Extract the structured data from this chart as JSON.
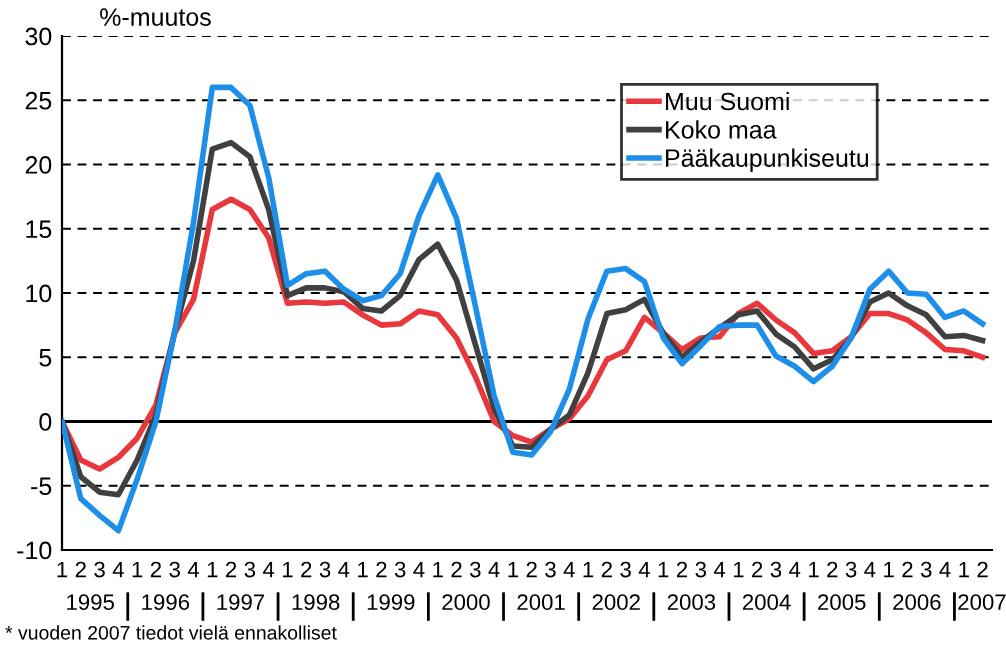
{
  "chart_data": {
    "type": "line",
    "ylabel": "%-muutos",
    "categories": [
      "1",
      "2",
      "3",
      "4",
      "1",
      "2",
      "3",
      "4",
      "1",
      "2",
      "3",
      "4",
      "1",
      "2",
      "3",
      "4",
      "1",
      "2",
      "3",
      "4",
      "1",
      "2",
      "3",
      "4",
      "1",
      "2",
      "3",
      "4",
      "1",
      "2",
      "3",
      "4",
      "1",
      "2",
      "3",
      "4",
      "1",
      "2",
      "3",
      "4",
      "1",
      "2",
      "3",
      "4",
      "1",
      "2",
      "3",
      "4",
      "1",
      "2"
    ],
    "series": [
      {
        "name": "Muu Suomi",
        "color": "#e8383d",
        "values": [
          0,
          -3.0,
          -3.7,
          -2.8,
          -1.3,
          1.3,
          6.9,
          9.5,
          16.5,
          17.3,
          16.5,
          14.3,
          9.2,
          9.3,
          9.2,
          9.3,
          8.3,
          7.5,
          7.6,
          8.6,
          8.3,
          6.5,
          3.5,
          0,
          -1.1,
          -1.6,
          -0.6,
          0.2,
          2.0,
          4.8,
          5.5,
          8.1,
          6.9,
          5.6,
          6.5,
          6.6,
          8.4,
          9.2,
          7.9,
          6.9,
          5.3,
          5.5,
          6.6,
          8.4,
          8.4,
          7.9,
          6.9,
          5.6,
          5.5,
          5.0
        ]
      },
      {
        "name": "Koko maa",
        "color": "#404040",
        "values": [
          0,
          -4.3,
          -5.5,
          -5.7,
          -3.0,
          0.5,
          7.0,
          12.5,
          21.2,
          21.7,
          20.6,
          16.5,
          9.8,
          10.4,
          10.4,
          10.1,
          8.8,
          8.6,
          9.8,
          12.6,
          13.8,
          11.0,
          6.0,
          1.0,
          -1.9,
          -2.0,
          -0.6,
          0.5,
          3.8,
          8.4,
          8.7,
          9.5,
          6.9,
          5.0,
          6.2,
          7.3,
          8.3,
          8.6,
          6.8,
          5.8,
          4.1,
          4.8,
          6.5,
          9.3,
          10.0,
          9.0,
          8.3,
          6.6,
          6.7,
          6.3
        ]
      },
      {
        "name": "Pääkaupunkiseutu",
        "color": "#1e8fe8",
        "values": [
          0,
          -6.0,
          -7.3,
          -8.5,
          -4.5,
          0,
          7.0,
          15.5,
          26.0,
          26.0,
          24.6,
          19.0,
          10.6,
          11.5,
          11.7,
          10.3,
          9.4,
          9.8,
          11.5,
          16.0,
          19.2,
          15.8,
          9.0,
          2.0,
          -2.4,
          -2.6,
          -0.8,
          2.5,
          8.0,
          11.7,
          11.9,
          10.9,
          6.5,
          4.5,
          5.9,
          7.4,
          7.5,
          7.5,
          5.1,
          4.3,
          3.1,
          4.3,
          6.5,
          10.3,
          11.7,
          10.0,
          9.9,
          8.1,
          8.6,
          7.6
        ]
      }
    ],
    "ylim": [
      -10,
      30
    ],
    "yticks": [
      -10,
      -5,
      0,
      5,
      10,
      15,
      20,
      25,
      30
    ],
    "grid": "y",
    "legend": "top right",
    "line_style": "solid",
    "marker": "none",
    "ref_lines": [
      {
        "axis": "y",
        "value": 0,
        "color": "#000000"
      }
    ],
    "annotations": [
      "1995",
      "1996",
      "1997",
      "1998",
      "1999",
      "2000",
      "2001",
      "2002",
      "2003",
      "2004",
      "2005",
      "2006",
      "2007",
      "* vuoden 2007 tiedot vielä ennakolliset"
    ]
  }
}
